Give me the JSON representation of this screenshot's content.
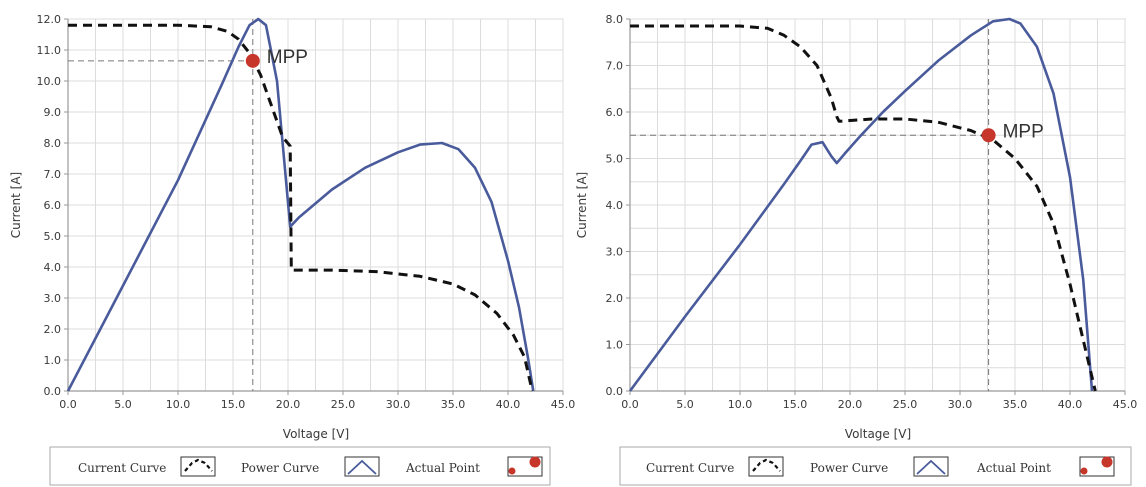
{
  "colors": {
    "power_curve": "#4a5b9c",
    "current_curve": "#111111",
    "point": "#c7362b",
    "grid": "#dcdcdc",
    "axis": "#999999"
  },
  "legend": {
    "current_curve": "Current Curve",
    "power_curve": "Power Curve",
    "actual_point": "Actual Point"
  },
  "chart_data": [
    {
      "type": "line",
      "xlabel": "Voltage [V]",
      "ylabel": "Current [A]",
      "xlim": [
        0,
        45
      ],
      "ylim": [
        0,
        12
      ],
      "xticks": [
        0,
        5,
        10,
        15,
        20,
        25,
        30,
        35,
        40,
        45
      ],
      "xticklabels": [
        "0.0",
        "5.0",
        "10.0",
        "15.0",
        "20.0",
        "25.0",
        "30.0",
        "35.0",
        "40.0",
        "45.0"
      ],
      "yticks": [
        0,
        1,
        2,
        3,
        4,
        5,
        6,
        7,
        8,
        9,
        10,
        11,
        12
      ],
      "yticklabels": [
        "0.0",
        "1.0",
        "2.0",
        "3.0",
        "4.0",
        "5.0",
        "6.0",
        "7.0",
        "8.0",
        "9.0",
        "10.0",
        "11.0",
        "12.0"
      ],
      "grid": true,
      "legend_position": "bottom",
      "series": [
        {
          "key": "power_curve",
          "style": "solid",
          "x": [
            0,
            5,
            10,
            14,
            15.5,
            16.5,
            17.3,
            18,
            19,
            20.2,
            21,
            24,
            27,
            30,
            32,
            34,
            35.5,
            37,
            38.5,
            40,
            41,
            41.8,
            42.3
          ],
          "y": [
            0,
            3.4,
            6.8,
            9.9,
            11.1,
            11.8,
            12.0,
            11.8,
            10.0,
            5.3,
            5.6,
            6.5,
            7.2,
            7.7,
            7.95,
            8.0,
            7.8,
            7.2,
            6.1,
            4.2,
            2.7,
            1.1,
            0
          ]
        },
        {
          "key": "current_curve",
          "style": "dashed",
          "x": [
            0,
            5,
            10,
            13,
            14.5,
            15.5,
            16.5,
            17.5,
            18.5,
            19.5,
            20.2,
            20.3,
            24,
            28,
            32,
            35,
            37,
            39,
            40.5,
            41.5,
            42.2
          ],
          "y": [
            11.8,
            11.8,
            11.8,
            11.75,
            11.6,
            11.35,
            10.9,
            10.2,
            9.2,
            8.2,
            7.9,
            3.9,
            3.9,
            3.85,
            3.7,
            3.45,
            3.1,
            2.5,
            1.8,
            1.1,
            0
          ]
        }
      ],
      "annotations": [
        {
          "label": "MPP",
          "x": 16.8,
          "y": 10.65
        }
      ]
    },
    {
      "type": "line",
      "xlabel": "Voltage [V]",
      "ylabel": "Current [A]",
      "xlim": [
        0,
        45
      ],
      "ylim": [
        0,
        8
      ],
      "xticks": [
        0,
        5,
        10,
        15,
        20,
        25,
        30,
        35,
        40,
        45
      ],
      "xticklabels": [
        "0.0",
        "5.0",
        "10.0",
        "15.0",
        "20.0",
        "25.0",
        "30.0",
        "35.0",
        "40.0",
        "45.0"
      ],
      "yticks": [
        0,
        1,
        2,
        3,
        4,
        5,
        6,
        7,
        8
      ],
      "yticklabels": [
        "0.0",
        "1.0",
        "2.0",
        "3.0",
        "4.0",
        "5.0",
        "6.0",
        "7.0",
        "8.0"
      ],
      "grid": true,
      "legend_position": "bottom",
      "series": [
        {
          "key": "power_curve",
          "style": "solid",
          "x": [
            0,
            5,
            10,
            14,
            15.5,
            16.5,
            17.5,
            18.3,
            18.8,
            19.5,
            21,
            23,
            25,
            28,
            31,
            33,
            34.5,
            35.5,
            37,
            38.5,
            40,
            41.2,
            42
          ],
          "y": [
            0,
            1.6,
            3.15,
            4.45,
            4.95,
            5.3,
            5.35,
            5.05,
            4.9,
            5.1,
            5.5,
            6.0,
            6.45,
            7.1,
            7.65,
            7.95,
            8.0,
            7.9,
            7.4,
            6.4,
            4.6,
            2.4,
            0
          ]
        },
        {
          "key": "current_curve",
          "style": "dashed",
          "x": [
            0,
            5,
            10,
            12.5,
            14,
            15.5,
            17,
            18.3,
            18.8,
            19,
            22,
            25,
            28,
            31,
            33,
            35,
            37,
            38.5,
            40,
            41.2,
            42.3
          ],
          "y": [
            7.85,
            7.85,
            7.85,
            7.8,
            7.65,
            7.4,
            7.0,
            6.3,
            5.9,
            5.8,
            5.85,
            5.85,
            5.78,
            5.6,
            5.4,
            5.0,
            4.4,
            3.6,
            2.3,
            1.1,
            0
          ]
        }
      ],
      "annotations": [
        {
          "label": "MPP",
          "x": 32.6,
          "y": 5.5
        }
      ]
    }
  ]
}
